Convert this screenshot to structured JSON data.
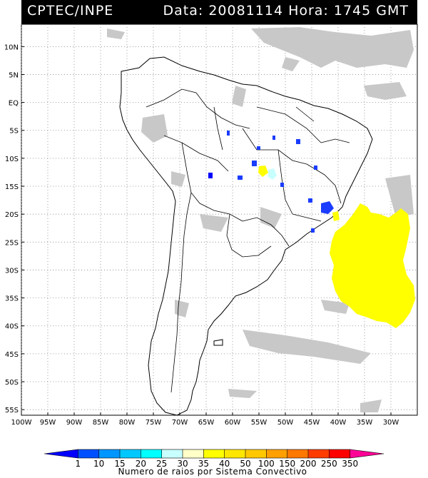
{
  "header": {
    "source": "CPTEC/INPE",
    "datetime": "Data: 20081114 Hora: 1745 GMT"
  },
  "map": {
    "region": "South America",
    "lon_range": [
      -100,
      -25
    ],
    "lat_range": [
      -56,
      14
    ],
    "lat_ticks": [
      "10N",
      "5N",
      "EQ",
      "5S",
      "10S",
      "15S",
      "20S",
      "25S",
      "30S",
      "35S",
      "40S",
      "45S",
      "50S",
      "55S"
    ],
    "lon_ticks": [
      "100W",
      "95W",
      "90W",
      "85W",
      "80W",
      "75W",
      "70W",
      "65W",
      "60W",
      "55W",
      "50W",
      "45W",
      "40W",
      "35W",
      "30W"
    ],
    "gridlines": "dotted",
    "layers": [
      "cloud-cover-gray",
      "country-borders",
      "state-borders",
      "convective-systems"
    ]
  },
  "colorbar": {
    "labels": [
      "1",
      "10",
      "15",
      "20",
      "25",
      "30",
      "35",
      "40",
      "50",
      "100",
      "150",
      "200",
      "250",
      "350"
    ],
    "colors": [
      "#0000ff",
      "#0050ff",
      "#0096ff",
      "#00c8ff",
      "#00ffff",
      "#c8ffff",
      "#ffffc8",
      "#ffff00",
      "#ffe600",
      "#ffc800",
      "#ffa000",
      "#ff7800",
      "#ff3c00",
      "#ff0000",
      "#ff0096"
    ],
    "title": "Numero de raios por Sistema Convectivo"
  },
  "colors": {
    "header_bg": "#000000",
    "header_text": "#ffffff",
    "cloud": "#c8c8c8",
    "coast": "#000000",
    "lightning_low": "#1a3cff",
    "lightning_mid": "#ffff00"
  }
}
